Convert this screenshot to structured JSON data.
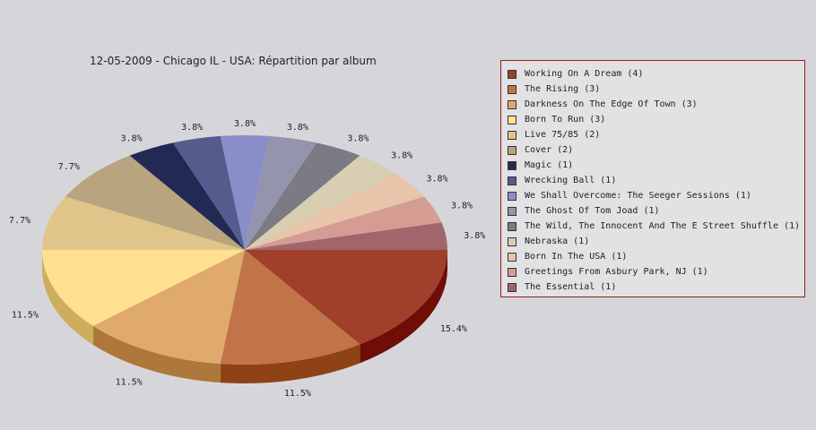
{
  "chart_data": {
    "type": "pie",
    "title": "12-05-2009 - Chicago IL - USA:  Répartition par album",
    "legend_position": "right",
    "slices": [
      {
        "label": "Working On A Dream (4)",
        "value": 4,
        "percent_label": "15.4%",
        "color": "#a0402a",
        "side_color": "#6e0e06"
      },
      {
        "label": "The Rising (3)",
        "value": 3,
        "percent_label": "11.5%",
        "color": "#c07448",
        "side_color": "#8e4216"
      },
      {
        "label": "Darkness On The Edge Of Town (3)",
        "value": 3,
        "percent_label": "11.5%",
        "color": "#dfaa6c",
        "side_color": "#ad783a"
      },
      {
        "label": "Born To Run (3)",
        "value": 3,
        "percent_label": "11.5%",
        "color": "#fee08e",
        "side_color": "#ccae5c"
      },
      {
        "label": "Live 75/85 (2)",
        "value": 2,
        "percent_label": "7.7%",
        "color": "#dfc58a",
        "side_color": "#ad9358"
      },
      {
        "label": "Cover (2)",
        "value": 2,
        "percent_label": "7.7%",
        "color": "#b8a47e",
        "side_color": "#86724c"
      },
      {
        "label": "Magic (1)",
        "value": 1,
        "percent_label": "3.8%",
        "color": "#222a54",
        "side_color": "#101530"
      },
      {
        "label": "Wrecking Ball (1)",
        "value": 1,
        "percent_label": "3.8%",
        "color": "#545c8e",
        "side_color": "#343a60"
      },
      {
        "label": "We Shall Overcome: The Seeger Sessions (1)",
        "value": 1,
        "percent_label": "3.8%",
        "color": "#8a8ec8",
        "side_color": "#5a5e98"
      },
      {
        "label": "The Ghost Of Tom Joad (1)",
        "value": 1,
        "percent_label": "3.8%",
        "color": "#9494ac",
        "side_color": "#64647c"
      },
      {
        "label": "The Wild, The Innocent And The E Street Shuffle (1)",
        "value": 1,
        "percent_label": "3.8%",
        "color": "#7c7a84",
        "side_color": "#4c4a54"
      },
      {
        "label": "Nebraska (1)",
        "value": 1,
        "percent_label": "3.8%",
        "color": "#d8ceb2",
        "side_color": "#a89e82"
      },
      {
        "label": "Born In The USA (1)",
        "value": 1,
        "percent_label": "3.8%",
        "color": "#e8c4aa",
        "side_color": "#b8947a"
      },
      {
        "label": "Greetings From Asbury Park, NJ (1)",
        "value": 1,
        "percent_label": "3.8%",
        "color": "#d49c92",
        "side_color": "#a46c62"
      },
      {
        "label": "The Essential (1)",
        "value": 1,
        "percent_label": "3.8%",
        "color": "#a0666c",
        "side_color": "#70363c"
      }
    ]
  }
}
